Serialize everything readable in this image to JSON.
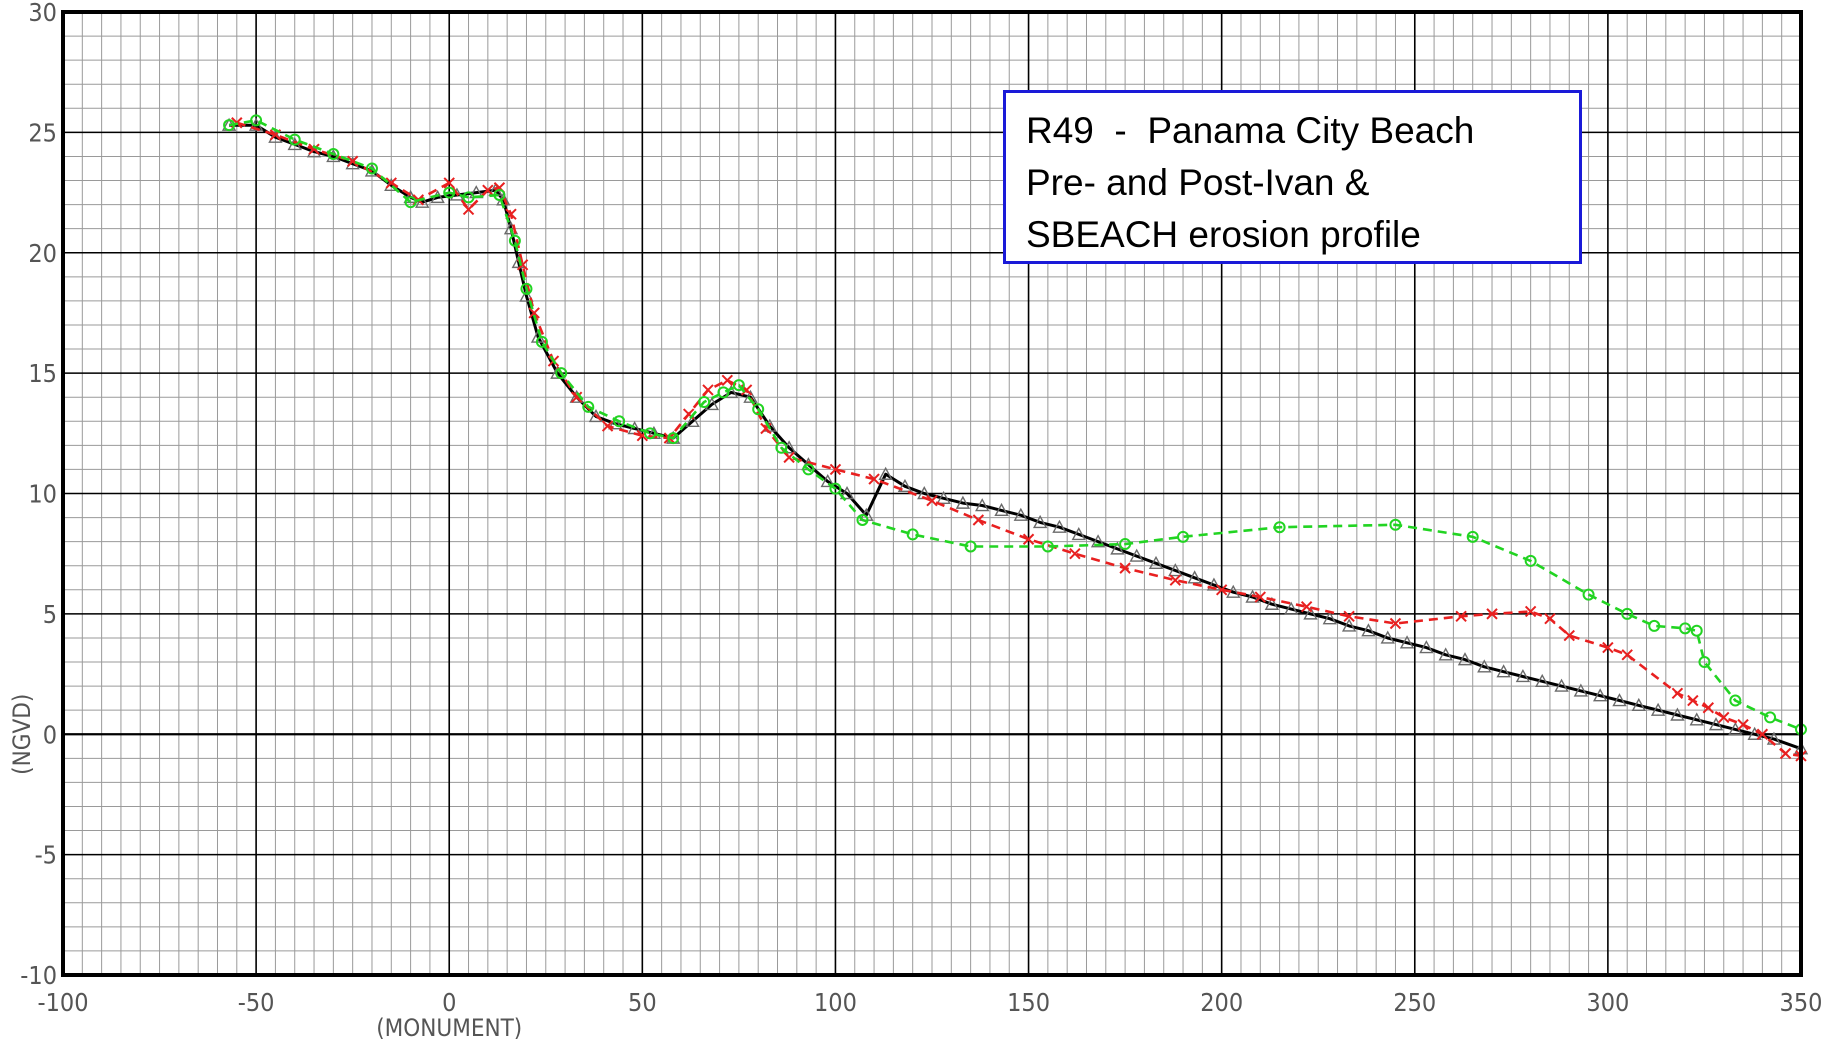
{
  "chart_data": {
    "type": "line",
    "title_lines": [
      "R49  -  Panama City Beach",
      "Pre- and Post-Ivan &",
      "SBEACH erosion profile"
    ],
    "xlabel": "(MONUMENT)",
    "ylabel": "(NGVD)",
    "xlim": [
      -100,
      350
    ],
    "ylim": [
      -10,
      30
    ],
    "x_ticks": [
      -100,
      -50,
      0,
      50,
      100,
      150,
      200,
      250,
      300,
      350
    ],
    "x_tick_labels": [
      "-100",
      "-50",
      "0",
      "50",
      "100",
      "150",
      "200",
      "250",
      "300",
      "350"
    ],
    "y_ticks": [
      -10,
      -5,
      0,
      5,
      10,
      15,
      20,
      25,
      30
    ],
    "y_tick_labels": [
      "-10",
      "-5",
      "0",
      "5",
      "10",
      "15",
      "20",
      "25",
      "30"
    ],
    "grid": true,
    "series": [
      {
        "color": "#000000",
        "style": "solid",
        "marker": "triangle",
        "points": [
          [
            -57,
            25.3
          ],
          [
            -50,
            25.3
          ],
          [
            -45,
            24.8
          ],
          [
            -40,
            24.5
          ],
          [
            -35,
            24.2
          ],
          [
            -30,
            24.0
          ],
          [
            -25,
            23.7
          ],
          [
            -20,
            23.4
          ],
          [
            -15,
            22.8
          ],
          [
            -10,
            22.3
          ],
          [
            -7,
            22.1
          ],
          [
            -3,
            22.3
          ],
          [
            2,
            22.4
          ],
          [
            7,
            22.5
          ],
          [
            12,
            22.6
          ],
          [
            14,
            22.2
          ],
          [
            16,
            21.0
          ],
          [
            18,
            19.6
          ],
          [
            20,
            18.2
          ],
          [
            23,
            16.5
          ],
          [
            28,
            15.0
          ],
          [
            33,
            14.0
          ],
          [
            38,
            13.2
          ],
          [
            43,
            12.9
          ],
          [
            48,
            12.7
          ],
          [
            53,
            12.5
          ],
          [
            58,
            12.3
          ],
          [
            63,
            13.0
          ],
          [
            68,
            13.7
          ],
          [
            73,
            14.2
          ],
          [
            78,
            14.0
          ],
          [
            83,
            12.8
          ],
          [
            88,
            11.9
          ],
          [
            93,
            11.2
          ],
          [
            98,
            10.5
          ],
          [
            103,
            10.0
          ],
          [
            108,
            9.1
          ],
          [
            113,
            10.8
          ],
          [
            118,
            10.3
          ],
          [
            123,
            10.0
          ],
          [
            128,
            9.8
          ],
          [
            133,
            9.6
          ],
          [
            138,
            9.5
          ],
          [
            143,
            9.3
          ],
          [
            148,
            9.1
          ],
          [
            153,
            8.8
          ],
          [
            158,
            8.6
          ],
          [
            163,
            8.3
          ],
          [
            168,
            8.0
          ],
          [
            173,
            7.7
          ],
          [
            178,
            7.4
          ],
          [
            183,
            7.1
          ],
          [
            188,
            6.8
          ],
          [
            193,
            6.5
          ],
          [
            198,
            6.2
          ],
          [
            203,
            5.9
          ],
          [
            208,
            5.7
          ],
          [
            213,
            5.4
          ],
          [
            218,
            5.2
          ],
          [
            223,
            5.0
          ],
          [
            228,
            4.8
          ],
          [
            233,
            4.5
          ],
          [
            238,
            4.3
          ],
          [
            243,
            4.0
          ],
          [
            248,
            3.8
          ],
          [
            253,
            3.6
          ],
          [
            258,
            3.3
          ],
          [
            263,
            3.1
          ],
          [
            268,
            2.8
          ],
          [
            273,
            2.6
          ],
          [
            278,
            2.4
          ],
          [
            283,
            2.2
          ],
          [
            288,
            2.0
          ],
          [
            293,
            1.8
          ],
          [
            298,
            1.6
          ],
          [
            303,
            1.4
          ],
          [
            308,
            1.2
          ],
          [
            313,
            1.0
          ],
          [
            318,
            0.8
          ],
          [
            323,
            0.6
          ],
          [
            328,
            0.4
          ],
          [
            333,
            0.2
          ],
          [
            338,
            0.0
          ],
          [
            343,
            -0.2
          ],
          [
            350,
            -0.6
          ]
        ]
      },
      {
        "color": "#e82020",
        "style": "dashed",
        "marker": "x",
        "points": [
          [
            -55,
            25.4
          ],
          [
            -45,
            24.9
          ],
          [
            -35,
            24.3
          ],
          [
            -25,
            23.8
          ],
          [
            -15,
            22.9
          ],
          [
            -8,
            22.2
          ],
          [
            0,
            22.9
          ],
          [
            5,
            21.8
          ],
          [
            10,
            22.6
          ],
          [
            13,
            22.7
          ],
          [
            16,
            21.6
          ],
          [
            19,
            19.5
          ],
          [
            22,
            17.5
          ],
          [
            27,
            15.5
          ],
          [
            33,
            14.0
          ],
          [
            41,
            12.8
          ],
          [
            50,
            12.4
          ],
          [
            57,
            12.3
          ],
          [
            62,
            13.3
          ],
          [
            67,
            14.3
          ],
          [
            72,
            14.7
          ],
          [
            77,
            14.3
          ],
          [
            82,
            12.7
          ],
          [
            88,
            11.5
          ],
          [
            100,
            11.0
          ],
          [
            110,
            10.6
          ],
          [
            125,
            9.7
          ],
          [
            137,
            8.9
          ],
          [
            150,
            8.1
          ],
          [
            162,
            7.5
          ],
          [
            175,
            6.9
          ],
          [
            188,
            6.4
          ],
          [
            200,
            6.0
          ],
          [
            210,
            5.7
          ],
          [
            222,
            5.3
          ],
          [
            233,
            4.9
          ],
          [
            245,
            4.6
          ],
          [
            262,
            4.9
          ],
          [
            270,
            5.0
          ],
          [
            280,
            5.1
          ],
          [
            285,
            4.8
          ],
          [
            290,
            4.1
          ],
          [
            300,
            3.6
          ],
          [
            305,
            3.3
          ],
          [
            318,
            1.7
          ],
          [
            322,
            1.4
          ],
          [
            326,
            1.1
          ],
          [
            330,
            0.7
          ],
          [
            335,
            0.4
          ],
          [
            340,
            0.0
          ],
          [
            346,
            -0.8
          ],
          [
            350,
            -0.9
          ]
        ]
      },
      {
        "color": "#22d422",
        "style": "dashed",
        "marker": "circle",
        "points": [
          [
            -57,
            25.3
          ],
          [
            -50,
            25.5
          ],
          [
            -40,
            24.7
          ],
          [
            -30,
            24.1
          ],
          [
            -20,
            23.5
          ],
          [
            -10,
            22.1
          ],
          [
            0,
            22.5
          ],
          [
            5,
            22.3
          ],
          [
            13,
            22.4
          ],
          [
            17,
            20.5
          ],
          [
            20,
            18.5
          ],
          [
            24,
            16.3
          ],
          [
            29,
            15.0
          ],
          [
            36,
            13.6
          ],
          [
            44,
            13.0
          ],
          [
            52,
            12.5
          ],
          [
            58,
            12.3
          ],
          [
            66,
            13.8
          ],
          [
            71,
            14.2
          ],
          [
            75,
            14.5
          ],
          [
            80,
            13.5
          ],
          [
            86,
            11.9
          ],
          [
            93,
            11.0
          ],
          [
            100,
            10.2
          ],
          [
            107,
            8.9
          ],
          [
            120,
            8.3
          ],
          [
            135,
            7.8
          ],
          [
            155,
            7.8
          ],
          [
            175,
            7.9
          ],
          [
            190,
            8.2
          ],
          [
            215,
            8.6
          ],
          [
            245,
            8.7
          ],
          [
            265,
            8.2
          ],
          [
            280,
            7.2
          ],
          [
            295,
            5.8
          ],
          [
            305,
            5.0
          ],
          [
            312,
            4.5
          ],
          [
            320,
            4.4
          ],
          [
            323,
            4.3
          ],
          [
            325,
            3.0
          ],
          [
            333,
            1.4
          ],
          [
            342,
            0.7
          ],
          [
            350,
            0.2
          ]
        ]
      }
    ]
  }
}
